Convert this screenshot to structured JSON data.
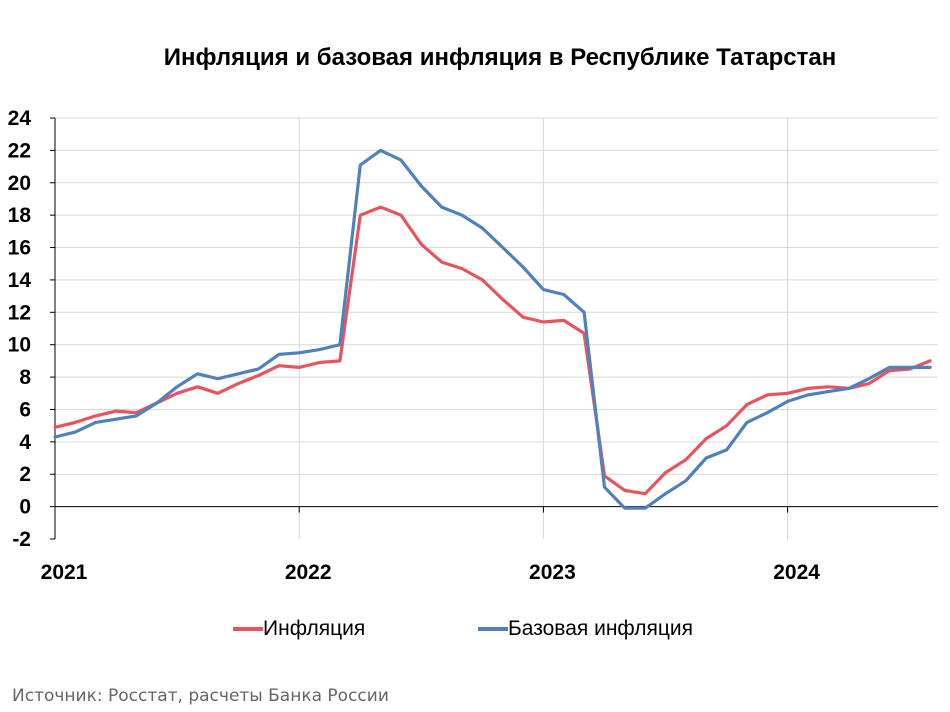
{
  "chart_data": {
    "type": "line",
    "title": "Инфляция и базовая инфляция в Республике Татарстан",
    "xlabel": "",
    "ylabel": "",
    "ylim": [
      -2,
      24
    ],
    "yticks": [
      -2,
      0,
      2,
      4,
      6,
      8,
      10,
      12,
      14,
      16,
      18,
      20,
      22,
      24
    ],
    "xticks": [
      "2021",
      "2022",
      "2023",
      "2024"
    ],
    "x_start": "2021-01",
    "x_end": "2024-08",
    "grid": true,
    "legend_position": "bottom",
    "series": [
      {
        "name": "Инфляция",
        "color": "#e8545e",
        "values": [
          4.9,
          5.2,
          5.6,
          5.9,
          5.8,
          6.4,
          7.0,
          7.4,
          7.0,
          7.6,
          8.1,
          8.7,
          8.6,
          8.9,
          9.0,
          18.0,
          18.5,
          18.0,
          16.2,
          15.1,
          14.7,
          14.0,
          12.8,
          11.7,
          11.4,
          11.5,
          10.7,
          1.9,
          1.0,
          0.8,
          2.1,
          2.9,
          4.2,
          5.0,
          6.3,
          6.9,
          7.0,
          7.3,
          7.4,
          7.3,
          7.6,
          8.4,
          8.5,
          9.0
        ]
      },
      {
        "name": "Базовая инфляция",
        "color": "#4f81bd",
        "values": [
          4.3,
          4.6,
          5.2,
          5.4,
          5.6,
          6.4,
          7.4,
          8.2,
          7.9,
          8.2,
          8.5,
          9.4,
          9.5,
          9.7,
          10.0,
          21.1,
          22.0,
          21.4,
          19.8,
          18.5,
          18.0,
          17.2,
          16.0,
          14.8,
          13.4,
          13.1,
          12.0,
          1.2,
          -0.1,
          -0.1,
          0.8,
          1.6,
          3.0,
          3.5,
          5.2,
          5.8,
          6.5,
          6.9,
          7.1,
          7.3,
          7.9,
          8.6,
          8.6,
          8.6
        ]
      }
    ]
  },
  "legend": {
    "inflation": "Инфляция",
    "core": "Базовая инфляция"
  },
  "source": "Источник: Росстат, расчеты Банка России",
  "colors": {
    "grid": "#d9d9d9",
    "axis": "#000000"
  }
}
